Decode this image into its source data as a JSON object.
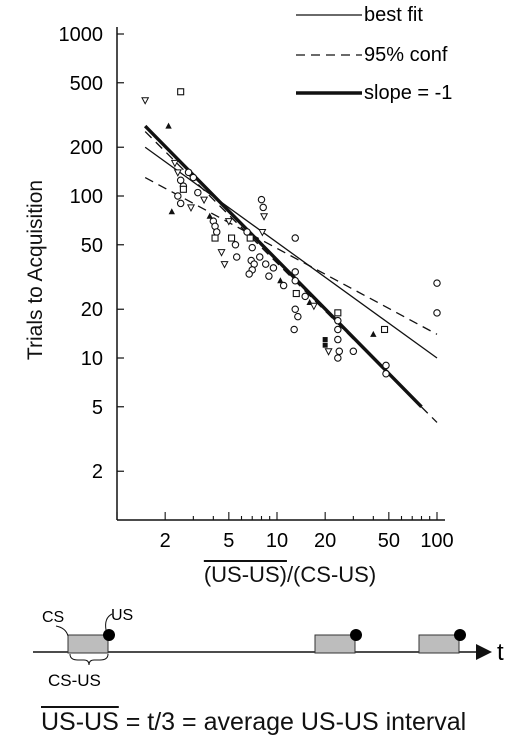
{
  "chart_data": {
    "type": "scatter",
    "xscale": "log",
    "yscale": "log",
    "xlim": [
      1,
      100
    ],
    "ylim": [
      1,
      1000
    ],
    "xticks": [
      2,
      5,
      10,
      20,
      50,
      100
    ],
    "xtick_labels": [
      "2",
      "5",
      "10",
      "20",
      "50",
      "100"
    ],
    "yticks": [
      2,
      5,
      10,
      20,
      50,
      100,
      200,
      500,
      1000
    ],
    "ytick_labels": [
      "2",
      "5",
      "10",
      "20",
      "50",
      "100",
      "200",
      "500",
      "1000"
    ],
    "xlabel_main": "(US-US)",
    "xlabel_rest": "/(CS-US)",
    "ylabel": "Trials to Acquisition",
    "legend": {
      "position": "top-right",
      "entries": [
        {
          "label": "best fit",
          "style": "thin-solid"
        },
        {
          "label": "95% conf",
          "style": "dashed"
        },
        {
          "label": "slope = -1",
          "style": "thick-solid"
        }
      ]
    },
    "lines": [
      {
        "name": "best fit",
        "style": "thin-solid",
        "points": [
          [
            1.5,
            200
          ],
          [
            100,
            10
          ]
        ]
      },
      {
        "name": "95% conf",
        "style": "dashed",
        "points": [
          [
            1.5,
            130
          ],
          [
            100,
            14
          ]
        ]
      },
      {
        "name": "95% conf",
        "style": "dashed",
        "points": [
          [
            1.5,
            250
          ],
          [
            100,
            4
          ]
        ]
      },
      {
        "name": "slope = -1",
        "style": "thick-solid",
        "points": [
          [
            1.5,
            270
          ],
          [
            80,
            5
          ]
        ]
      }
    ],
    "points": [
      {
        "x": 1.5,
        "y": 390,
        "m": "tri-down"
      },
      {
        "x": 2.1,
        "y": 270,
        "m": "tri-up"
      },
      {
        "x": 2.5,
        "y": 440,
        "m": "square"
      },
      {
        "x": 2.3,
        "y": 160,
        "m": "tri-down"
      },
      {
        "x": 2.4,
        "y": 140,
        "m": "tri-down"
      },
      {
        "x": 2.5,
        "y": 125,
        "m": "circle"
      },
      {
        "x": 2.6,
        "y": 115,
        "m": "circle"
      },
      {
        "x": 2.4,
        "y": 100,
        "m": "circle"
      },
      {
        "x": 2.6,
        "y": 110,
        "m": "square"
      },
      {
        "x": 2.2,
        "y": 80,
        "m": "tri-up"
      },
      {
        "x": 2.5,
        "y": 90,
        "m": "circle"
      },
      {
        "x": 2.9,
        "y": 85,
        "m": "tri-down"
      },
      {
        "x": 2.8,
        "y": 140,
        "m": "circle"
      },
      {
        "x": 3.0,
        "y": 130,
        "m": "circle"
      },
      {
        "x": 3.2,
        "y": 105,
        "m": "circle"
      },
      {
        "x": 3.5,
        "y": 95,
        "m": "tri-down"
      },
      {
        "x": 4.0,
        "y": 70,
        "m": "circle"
      },
      {
        "x": 4.1,
        "y": 65,
        "m": "circle"
      },
      {
        "x": 4.2,
        "y": 60,
        "m": "circle"
      },
      {
        "x": 4.1,
        "y": 55,
        "m": "square"
      },
      {
        "x": 3.8,
        "y": 75,
        "m": "tri-up"
      },
      {
        "x": 4.5,
        "y": 45,
        "m": "tri-down"
      },
      {
        "x": 4.7,
        "y": 38,
        "m": "tri-down"
      },
      {
        "x": 5.2,
        "y": 55,
        "m": "square"
      },
      {
        "x": 5.5,
        "y": 50,
        "m": "circle"
      },
      {
        "x": 5.0,
        "y": 70,
        "m": "tri-down"
      },
      {
        "x": 5.6,
        "y": 42,
        "m": "circle"
      },
      {
        "x": 6.5,
        "y": 60,
        "m": "circle"
      },
      {
        "x": 6.8,
        "y": 55,
        "m": "square"
      },
      {
        "x": 7.0,
        "y": 48,
        "m": "circle"
      },
      {
        "x": 6.9,
        "y": 40,
        "m": "circle"
      },
      {
        "x": 7.2,
        "y": 38,
        "m": "circle"
      },
      {
        "x": 7.0,
        "y": 35,
        "m": "circle"
      },
      {
        "x": 6.7,
        "y": 33,
        "m": "circle"
      },
      {
        "x": 7.8,
        "y": 42,
        "m": "circle"
      },
      {
        "x": 8.0,
        "y": 95,
        "m": "circle"
      },
      {
        "x": 8.2,
        "y": 85,
        "m": "circle"
      },
      {
        "x": 8.3,
        "y": 75,
        "m": "tri-down"
      },
      {
        "x": 8.1,
        "y": 60,
        "m": "tri-down"
      },
      {
        "x": 8.5,
        "y": 38,
        "m": "circle"
      },
      {
        "x": 8.9,
        "y": 32,
        "m": "circle"
      },
      {
        "x": 9.5,
        "y": 36,
        "m": "circle"
      },
      {
        "x": 10.5,
        "y": 30,
        "m": "tri-up"
      },
      {
        "x": 11.0,
        "y": 28,
        "m": "circle"
      },
      {
        "x": 13.0,
        "y": 55,
        "m": "circle"
      },
      {
        "x": 13.0,
        "y": 34,
        "m": "circle"
      },
      {
        "x": 13.0,
        "y": 30,
        "m": "circle"
      },
      {
        "x": 13.2,
        "y": 25,
        "m": "square"
      },
      {
        "x": 13.0,
        "y": 20,
        "m": "circle"
      },
      {
        "x": 13.5,
        "y": 18,
        "m": "circle"
      },
      {
        "x": 12.8,
        "y": 15,
        "m": "circle"
      },
      {
        "x": 15.0,
        "y": 24,
        "m": "circle"
      },
      {
        "x": 16.0,
        "y": 22,
        "m": "tri-up"
      },
      {
        "x": 17.0,
        "y": 21,
        "m": "tri-down"
      },
      {
        "x": 20.0,
        "y": 13,
        "m": "square-filled"
      },
      {
        "x": 20.0,
        "y": 12,
        "m": "square-filled"
      },
      {
        "x": 21.0,
        "y": 11,
        "m": "tri-down"
      },
      {
        "x": 24.0,
        "y": 19,
        "m": "square"
      },
      {
        "x": 24.0,
        "y": 17,
        "m": "circle"
      },
      {
        "x": 24.0,
        "y": 15,
        "m": "circle"
      },
      {
        "x": 24.0,
        "y": 13,
        "m": "circle"
      },
      {
        "x": 24.5,
        "y": 11,
        "m": "circle"
      },
      {
        "x": 24.0,
        "y": 10,
        "m": "circle"
      },
      {
        "x": 30.0,
        "y": 11,
        "m": "circle"
      },
      {
        "x": 40.0,
        "y": 14,
        "m": "tri-up"
      },
      {
        "x": 47.0,
        "y": 15,
        "m": "square"
      },
      {
        "x": 48.0,
        "y": 9,
        "m": "circle"
      },
      {
        "x": 48.0,
        "y": 8,
        "m": "circle"
      },
      {
        "x": 100.0,
        "y": 29,
        "m": "circle"
      },
      {
        "x": 100.0,
        "y": 19,
        "m": "circle"
      }
    ]
  },
  "diagram": {
    "cs_label": "CS",
    "us_label": "US",
    "interval_label": "CS-US",
    "axis_label": "t",
    "caption_overline": "US-US",
    "caption_rest": " = t/3 = average US-US interval"
  }
}
